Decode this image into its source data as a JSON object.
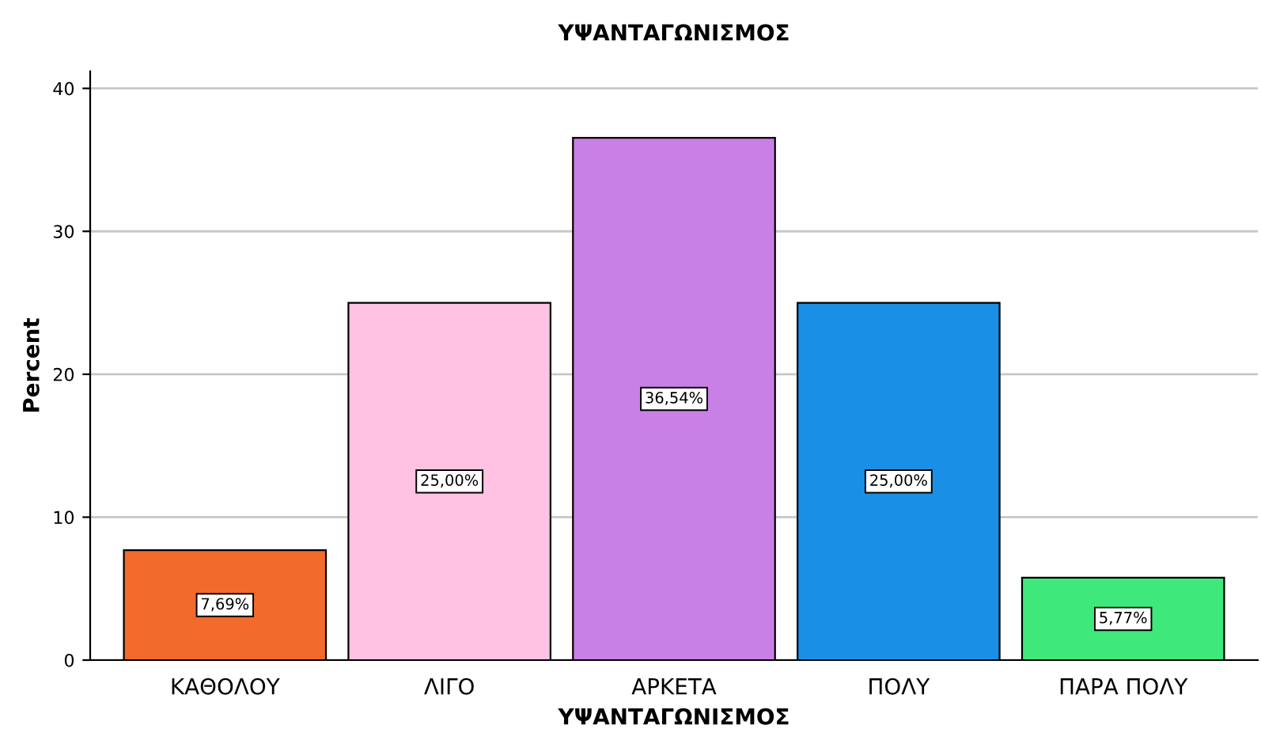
{
  "chart_data": {
    "type": "bar",
    "title": "ΥΨΑΝΤΑΓΩΝΙΣΜΟΣ",
    "xlabel": "ΥΨΑΝΤΑΓΩΝΙΣΜΟΣ",
    "ylabel": "Percent",
    "categories": [
      "ΚΑΘΟΛΟΥ",
      "ΛΙΓΟ",
      "ΑΡΚΕΤΑ",
      "ΠΟΛΥ",
      "ΠΑΡΑ ΠΟΛΥ"
    ],
    "values": [
      7.69,
      25.0,
      36.54,
      25.0,
      5.77
    ],
    "value_labels": [
      "7,69%",
      "25,00%",
      "36,54%",
      "25,00%",
      "5,77%"
    ],
    "colors": [
      "#f26b2c",
      "#ffc2e2",
      "#c980e6",
      "#1a8fe6",
      "#3ee87a"
    ],
    "ylim": [
      0,
      41.2
    ],
    "yticks": [
      0,
      10,
      20,
      30,
      40
    ],
    "grid": "y",
    "legend": false
  }
}
